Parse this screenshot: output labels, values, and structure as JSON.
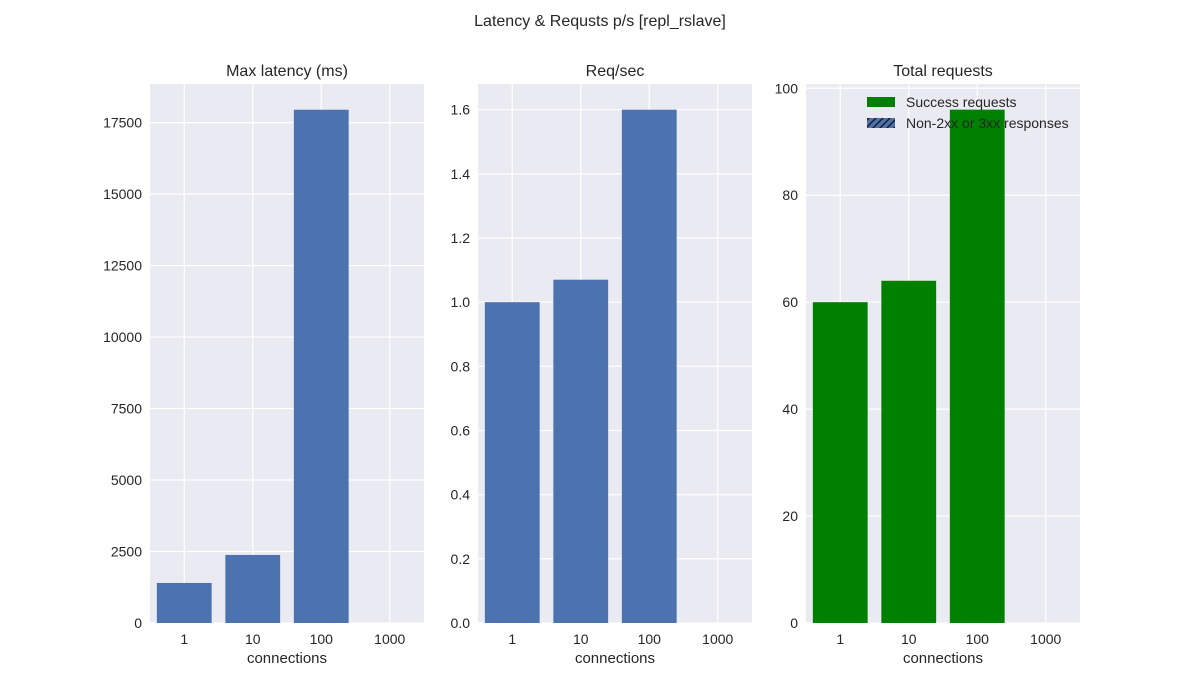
{
  "figure_title": "Latency & Requsts p/s [repl_rslave]",
  "colors": {
    "panel_bg": "#eaeaf2",
    "grid": "#ffffff",
    "bar_blue": "#4c72b0",
    "bar_green": "#008000",
    "text": "#262626"
  },
  "chart_data": [
    {
      "type": "bar",
      "title": "Max latency (ms)",
      "xlabel": "connections",
      "ylabel": "",
      "categories": [
        "1",
        "10",
        "100",
        "1000"
      ],
      "values": [
        1400,
        2380,
        17950,
        0
      ],
      "ylim": [
        0,
        18850
      ],
      "yticks": [
        0,
        2500,
        5000,
        7500,
        10000,
        12500,
        15000,
        17500
      ],
      "ytick_labels": [
        "0",
        "2500",
        "5000",
        "7500",
        "10000",
        "12500",
        "15000",
        "17500"
      ],
      "grid": true,
      "color": "#4c72b0"
    },
    {
      "type": "bar",
      "title": "Req/sec",
      "xlabel": "connections",
      "ylabel": "",
      "categories": [
        "1",
        "10",
        "100",
        "1000"
      ],
      "values": [
        1.0,
        1.07,
        1.6,
        0
      ],
      "ylim": [
        0,
        1.68
      ],
      "yticks": [
        0.0,
        0.2,
        0.4,
        0.6,
        0.8,
        1.0,
        1.2,
        1.4,
        1.6
      ],
      "ytick_labels": [
        "0.0",
        "0.2",
        "0.4",
        "0.6",
        "0.8",
        "1.0",
        "1.2",
        "1.4",
        "1.6"
      ],
      "grid": true,
      "color": "#4c72b0"
    },
    {
      "type": "bar",
      "title": "Total requests",
      "xlabel": "connections",
      "ylabel": "",
      "categories": [
        "1",
        "10",
        "100",
        "1000"
      ],
      "series": [
        {
          "name": "Success requests",
          "values": [
            60,
            64,
            96,
            0
          ],
          "color": "#008000"
        },
        {
          "name": "Non-2xx or 3xx responses",
          "values": [
            0,
            0,
            0,
            0
          ],
          "color": "#4c72b0",
          "hatch": "/"
        }
      ],
      "ylim": [
        0,
        100.8
      ],
      "yticks": [
        0,
        20,
        40,
        60,
        80,
        100
      ],
      "ytick_labels": [
        "0",
        "20",
        "40",
        "60",
        "80",
        "100"
      ],
      "grid": true,
      "legend": "upper-right"
    }
  ]
}
